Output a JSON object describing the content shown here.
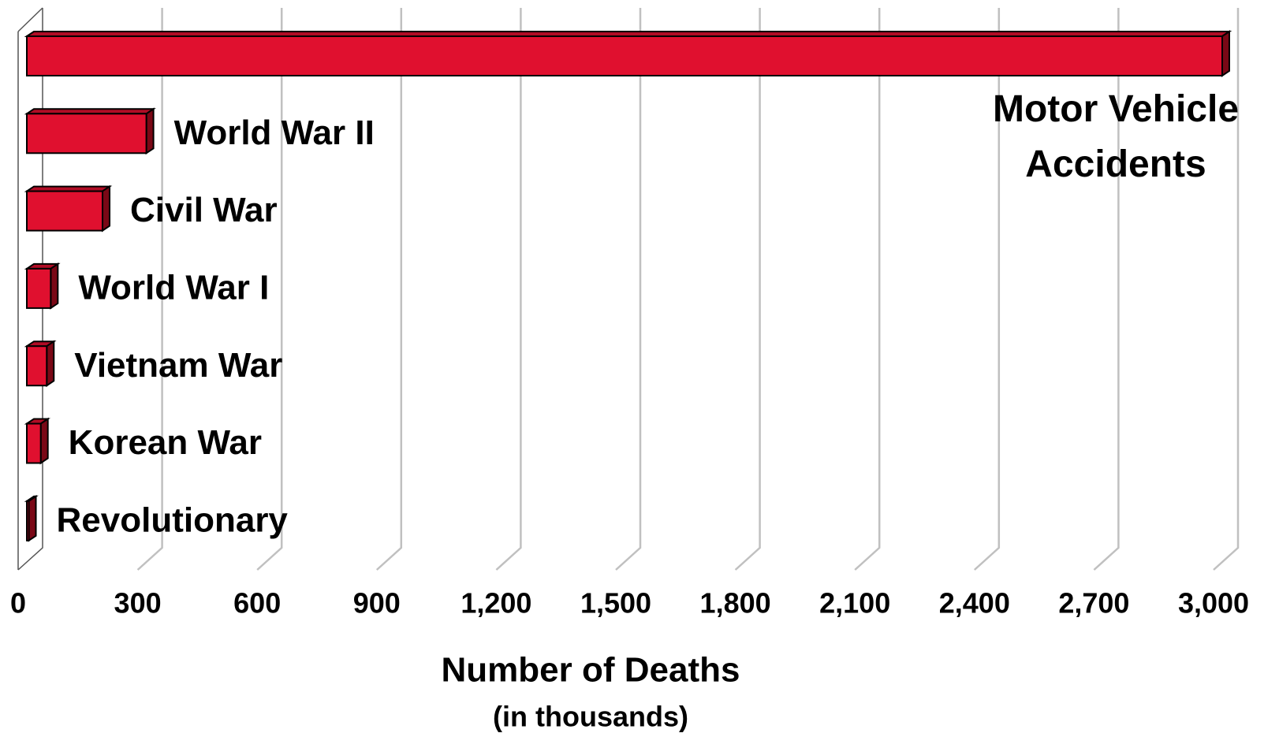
{
  "chart_data": {
    "type": "bar",
    "orientation": "horizontal",
    "x_label": "Number of Deaths",
    "x_sublabel": "(in thousands)",
    "categories": [
      "Motor Vehicle Accidents",
      "World War II",
      "Civil War",
      "World War I",
      "Vietnam War",
      "Korean War",
      "Revolutionary"
    ],
    "values": [
      3000,
      300,
      190,
      60,
      50,
      35,
      5
    ],
    "color": "#e0102f",
    "xlim": [
      0,
      3000
    ],
    "xticks": [
      0,
      300,
      600,
      900,
      {
        "value": 1200,
        "label": "1,200"
      },
      {
        "value": 1500,
        "label": "1,500"
      },
      {
        "value": 1800,
        "label": "1,800"
      },
      {
        "value": 2100,
        "label": "2,100"
      },
      {
        "value": 2400,
        "label": "2,400"
      },
      {
        "value": 2700,
        "label": "2,700"
      },
      {
        "value": 3000,
        "label": "3,000"
      }
    ],
    "grid": true
  }
}
